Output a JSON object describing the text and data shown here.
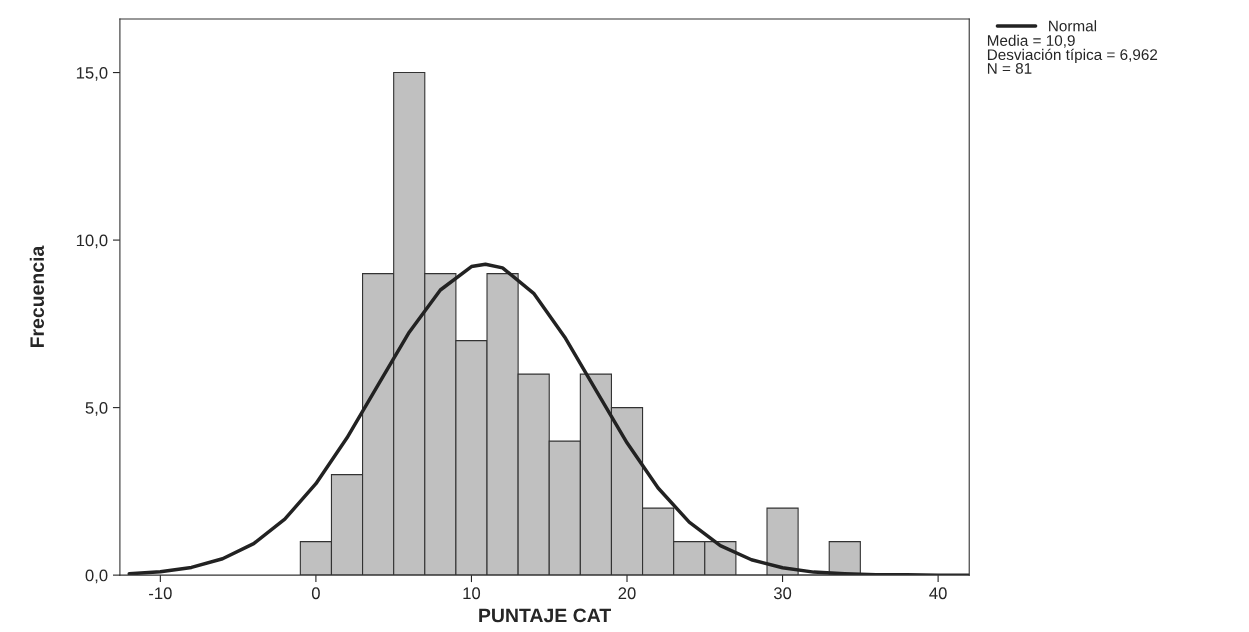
{
  "chart_data": {
    "type": "histogram",
    "xlabel": "PUNTAJE CAT",
    "ylabel": "Frecuencia",
    "series": [
      {
        "color": "#c0c0c0",
        "bins": [
          -1,
          1,
          3,
          5,
          7,
          9,
          11,
          13,
          15,
          17,
          19,
          21,
          23,
          25,
          27,
          29,
          31,
          33,
          35
        ],
        "values": [
          1,
          3,
          9,
          15,
          9,
          7,
          9,
          6,
          4,
          6,
          5,
          2,
          1,
          1,
          0,
          2,
          0,
          1
        ]
      },
      {
        "type": "line",
        "name": "Normal",
        "color": "#222222",
        "x": [
          -12,
          -10,
          -8,
          -6,
          -4,
          -2,
          0,
          2,
          4,
          6,
          8,
          10,
          10.9,
          12,
          14,
          16,
          18,
          20,
          22,
          24,
          26,
          28,
          30,
          32,
          34,
          36,
          38,
          40,
          42
        ],
        "values": [
          0.04,
          0.1,
          0.23,
          0.49,
          0.94,
          1.67,
          2.73,
          4.1,
          5.68,
          7.25,
          8.51,
          9.21,
          9.28,
          9.17,
          8.41,
          7.1,
          5.52,
          3.95,
          2.6,
          1.58,
          0.88,
          0.46,
          0.22,
          0.09,
          0.04,
          0.01,
          0.01,
          0.0,
          0.0
        ]
      }
    ],
    "xlim": [
      -12.6,
      42
    ],
    "xticks": [
      -10,
      0,
      10,
      20,
      30,
      40
    ],
    "ylim": [
      0,
      16.6
    ],
    "yticks": [
      {
        "value": 0,
        "label": "0,0"
      },
      {
        "value": 5,
        "label": "5,0"
      },
      {
        "value": 10,
        "label": "10,0"
      },
      {
        "value": 15,
        "label": "15,0"
      }
    ],
    "legend": "top right",
    "grid": false,
    "annotations": [
      "Media = 10,9",
      "Desviación típica = 6,962",
      "N = 81"
    ]
  }
}
